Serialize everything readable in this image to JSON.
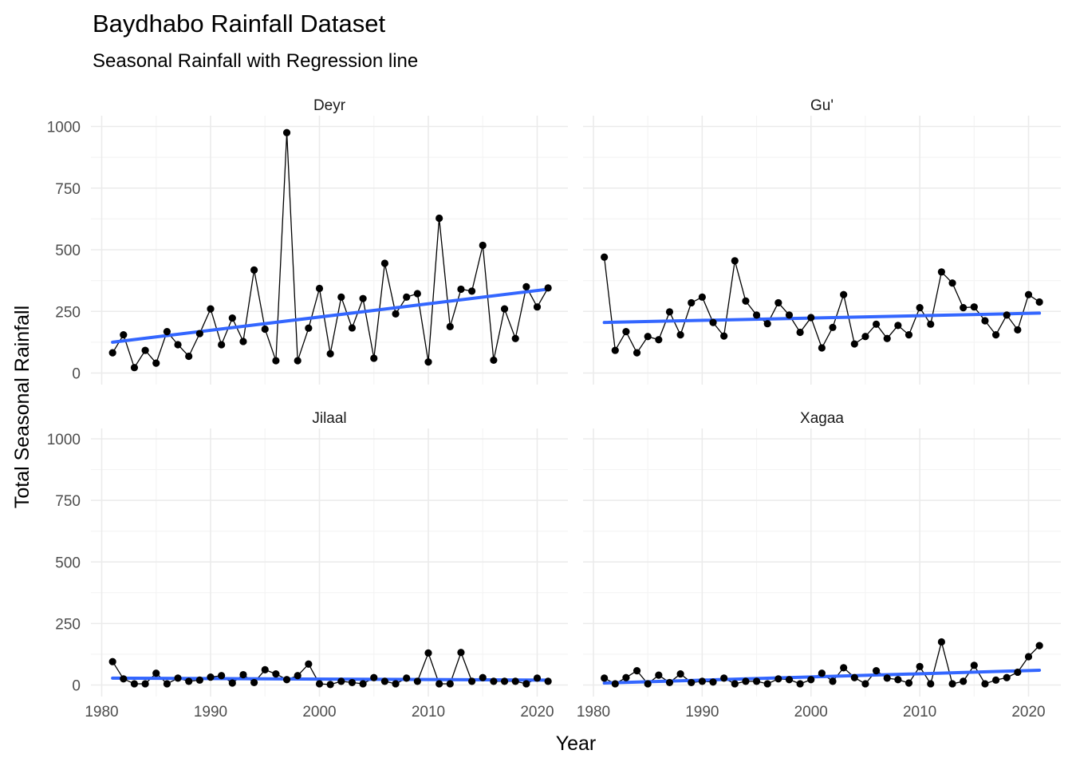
{
  "chart_data": {
    "type": "line",
    "title": "Baydhabo Rainfall Dataset",
    "subtitle": "Seasonal  Rainfall with Regression line",
    "xlabel": "Year",
    "ylabel": "Total Seasonal Rainfall",
    "xlim": [
      1980,
      2021
    ],
    "ylim": [
      0,
      1000
    ],
    "x_ticks": [
      1980,
      1990,
      2000,
      2010,
      2020
    ],
    "y_ticks": [
      0,
      250,
      500,
      750,
      1000
    ],
    "grid": true,
    "line_color": "#000000",
    "point_color": "#000000",
    "regression_color": "#3366ff",
    "x": [
      1981,
      1982,
      1983,
      1984,
      1985,
      1986,
      1987,
      1988,
      1989,
      1990,
      1991,
      1992,
      1993,
      1994,
      1995,
      1996,
      1997,
      1998,
      1999,
      2000,
      2001,
      2002,
      2003,
      2004,
      2005,
      2006,
      2007,
      2008,
      2009,
      2010,
      2011,
      2012,
      2013,
      2014,
      2015,
      2016,
      2017,
      2018,
      2019,
      2020,
      2021
    ],
    "panels": [
      {
        "name": "Deyr",
        "values": [
          82,
          155,
          22,
          92,
          40,
          168,
          115,
          68,
          160,
          260,
          115,
          223,
          128,
          418,
          178,
          50,
          975,
          50,
          182,
          343,
          78,
          308,
          183,
          302,
          60,
          445,
          240,
          308,
          322,
          45,
          628,
          188,
          340,
          332,
          518,
          52,
          260,
          140,
          350,
          268,
          345
        ],
        "regression": [
          125,
          340
        ]
      },
      {
        "name": "Gu'",
        "values": [
          470,
          92,
          168,
          82,
          148,
          135,
          248,
          155,
          285,
          308,
          205,
          150,
          455,
          292,
          235,
          200,
          285,
          235,
          165,
          225,
          102,
          185,
          318,
          118,
          148,
          198,
          140,
          193,
          155,
          265,
          198,
          410,
          365,
          265,
          268,
          212,
          155,
          235,
          175,
          318,
          288
        ],
        "regression": [
          205,
          243
        ]
      },
      {
        "name": "Jilaal",
        "values": [
          95,
          25,
          5,
          5,
          48,
          5,
          28,
          15,
          20,
          32,
          38,
          8,
          42,
          10,
          62,
          45,
          22,
          38,
          85,
          5,
          2,
          15,
          10,
          5,
          30,
          15,
          5,
          28,
          15,
          130,
          5,
          5,
          132,
          15,
          30,
          15,
          15,
          15,
          5,
          28,
          15
        ],
        "regression": [
          28,
          20
        ]
      },
      {
        "name": "Xagaa",
        "values": [
          28,
          5,
          30,
          58,
          5,
          40,
          10,
          45,
          10,
          15,
          12,
          28,
          5,
          15,
          15,
          5,
          25,
          22,
          5,
          22,
          48,
          15,
          70,
          30,
          5,
          58,
          28,
          22,
          8,
          75,
          5,
          175,
          5,
          15,
          80,
          5,
          20,
          30,
          52,
          115,
          160
        ],
        "regression": [
          8,
          60
        ]
      }
    ]
  }
}
